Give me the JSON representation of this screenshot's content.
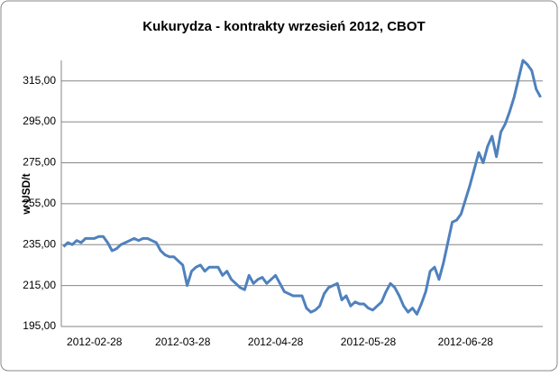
{
  "chart_data": {
    "type": "line",
    "title": "Kukurydza - kontrakty wrzesień 2012, CBOT",
    "y_label": "w USD/t",
    "categories": [
      null,
      null,
      null,
      null,
      null,
      null,
      null,
      "2012-02-28",
      null,
      null,
      null,
      null,
      null,
      null,
      null,
      null,
      null,
      null,
      null,
      null,
      null,
      null,
      null,
      null,
      null,
      null,
      null,
      "2012-03-28",
      null,
      null,
      null,
      null,
      null,
      null,
      null,
      null,
      null,
      null,
      null,
      null,
      null,
      null,
      null,
      null,
      null,
      null,
      null,
      null,
      "2012-04-28",
      null,
      null,
      null,
      null,
      null,
      null,
      null,
      null,
      null,
      null,
      null,
      null,
      null,
      null,
      null,
      null,
      null,
      null,
      null,
      null,
      "2012-05-28",
      null,
      null,
      null,
      null,
      null,
      null,
      null,
      null,
      null,
      null,
      null,
      null,
      null,
      null,
      null,
      null,
      null,
      null,
      null,
      null,
      null,
      "2012-06-28",
      null,
      null,
      null,
      null,
      null,
      null,
      null,
      null,
      null,
      null,
      null,
      null,
      null,
      null,
      null,
      null,
      null
    ],
    "series": [
      {
        "name": "Kukurydza",
        "color": "#4f81bd",
        "values": [
          234,
          236,
          235,
          237,
          236,
          238,
          238,
          238,
          239,
          239,
          236,
          232,
          233,
          235,
          236,
          237,
          238,
          237,
          238,
          238,
          237,
          236,
          232,
          230,
          229,
          229,
          227,
          225,
          215,
          222,
          224,
          225,
          222,
          224,
          224,
          224,
          220,
          222,
          218,
          216,
          214,
          213,
          220,
          216,
          218,
          219,
          216,
          218,
          220,
          216,
          212,
          211,
          210,
          210,
          210,
          204,
          202,
          203,
          205,
          211,
          214,
          215,
          216,
          208,
          210,
          205,
          207,
          206,
          206,
          204,
          203,
          205,
          207,
          212,
          216,
          214,
          210,
          205,
          202,
          204,
          201,
          206,
          212,
          222,
          224,
          218,
          226,
          236,
          246,
          247,
          250,
          257,
          264,
          272,
          280,
          275,
          283,
          288,
          278,
          290,
          294,
          300,
          307,
          316,
          325,
          323,
          320,
          311,
          307
        ]
      }
    ],
    "ylim": [
      195,
      325
    ],
    "yticks": [
      {
        "value": 195,
        "label": "195,00"
      },
      {
        "value": 215,
        "label": "215,00"
      },
      {
        "value": 235,
        "label": "235,00"
      },
      {
        "value": 255,
        "label": "255,00"
      },
      {
        "value": 275,
        "label": "275,00"
      },
      {
        "value": 295,
        "label": "295,00"
      },
      {
        "value": 315,
        "label": "315,00"
      }
    ],
    "grid": true
  }
}
